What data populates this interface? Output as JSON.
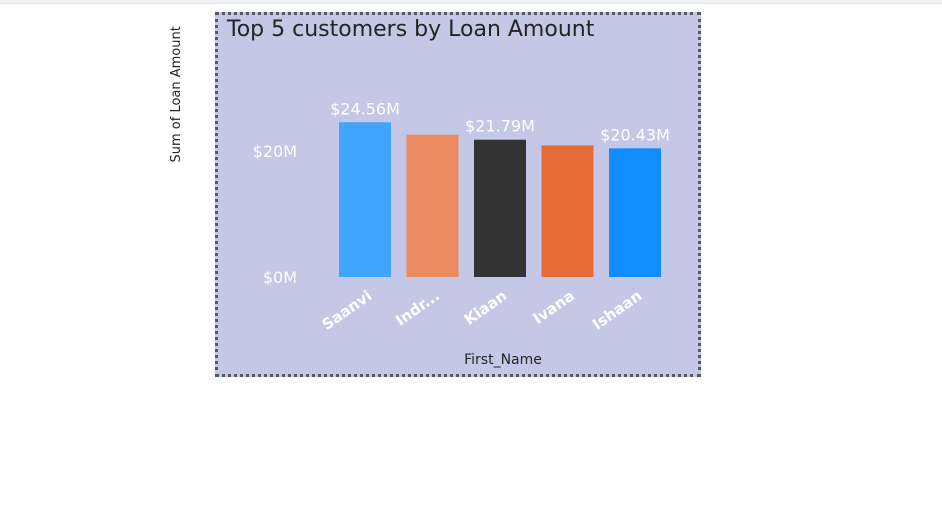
{
  "chart_data": {
    "type": "bar",
    "title": "Top 5 customers by Loan Amount",
    "xlabel": "First_Name",
    "ylabel": "Sum of Loan Amount",
    "categories": [
      "Saanvi",
      "Indr...",
      "Kiaan",
      "Ivana",
      "Ishaan"
    ],
    "values": [
      24.56,
      22.6,
      21.79,
      20.9,
      20.43
    ],
    "data_labels": [
      "$24.56M",
      "",
      "$21.79M",
      "",
      "$20.43M"
    ],
    "colors": [
      "#41a4ff",
      "#ec8a5f",
      "#333333",
      "#e66c37",
      "#118dff"
    ],
    "ylim": [
      0,
      28.1
    ],
    "yticks": [
      0,
      20
    ],
    "ytick_labels": [
      "$0M",
      "$20M"
    ],
    "grid": false,
    "legend": "none"
  }
}
